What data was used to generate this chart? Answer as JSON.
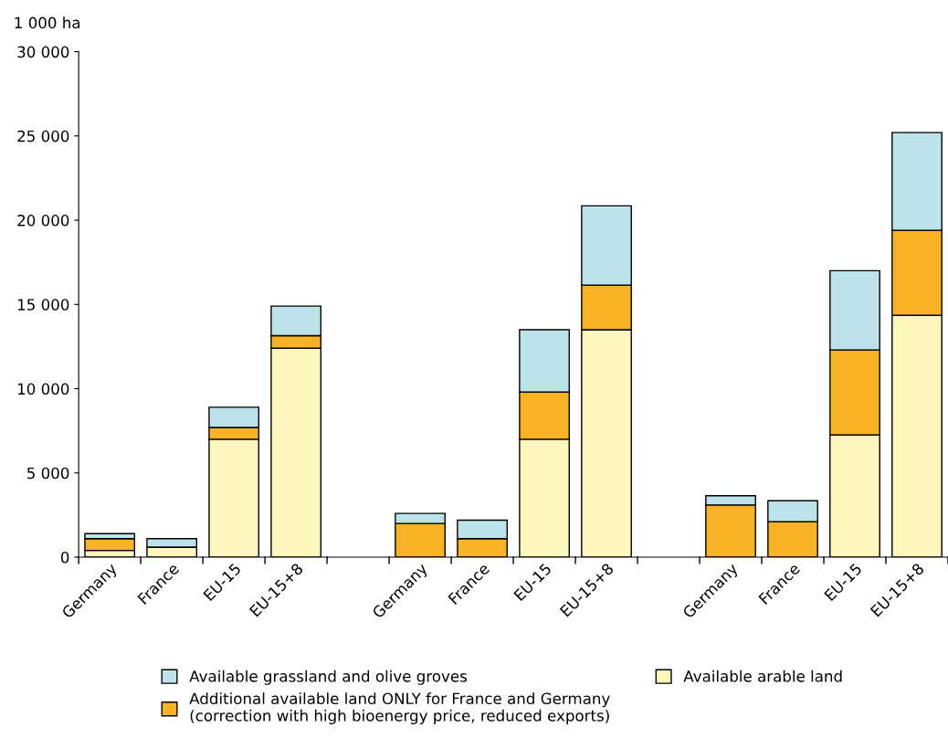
{
  "chart_data": {
    "type": "bar",
    "stacked": true,
    "ylabel": "1 000 ha",
    "categories": [
      "Germany",
      "France",
      "EU-15",
      "EU-15+8",
      null,
      "Germany",
      "France",
      "EU-15",
      "EU-15+8",
      null,
      "Germany",
      "France",
      "EU-15",
      "EU-15+8"
    ],
    "series": [
      {
        "name": "Available arable land",
        "color": "#fdf6bd",
        "values": [
          400,
          600,
          7000,
          12400,
          null,
          0,
          0,
          7000,
          13500,
          null,
          0,
          0,
          7250,
          14350
        ]
      },
      {
        "name": "Additional available land ONLY for France and Germany\n(correction with high bioenergy price, reduced exports)",
        "color": "#f7b225",
        "values": [
          700,
          0,
          700,
          750,
          null,
          2000,
          1100,
          2800,
          2650,
          null,
          3100,
          2100,
          5050,
          5050
        ]
      },
      {
        "name": "Available grassland and olive groves",
        "color": "#bde3ea",
        "values": [
          300,
          500,
          1200,
          1750,
          null,
          600,
          1100,
          3700,
          4700,
          null,
          550,
          1250,
          4700,
          5800
        ]
      }
    ],
    "ylim": [
      0,
      30000
    ],
    "yticks": [
      {
        "value": 0,
        "label": "0"
      },
      {
        "value": 5000,
        "label": "5 000"
      },
      {
        "value": 10000,
        "label": "10 000"
      },
      {
        "value": 15000,
        "label": "15 000"
      },
      {
        "value": 20000,
        "label": "20 000"
      },
      {
        "value": 25000,
        "label": "25 000"
      },
      {
        "value": 30000,
        "label": "30 000"
      }
    ],
    "grid": false,
    "legend": "bottom"
  }
}
